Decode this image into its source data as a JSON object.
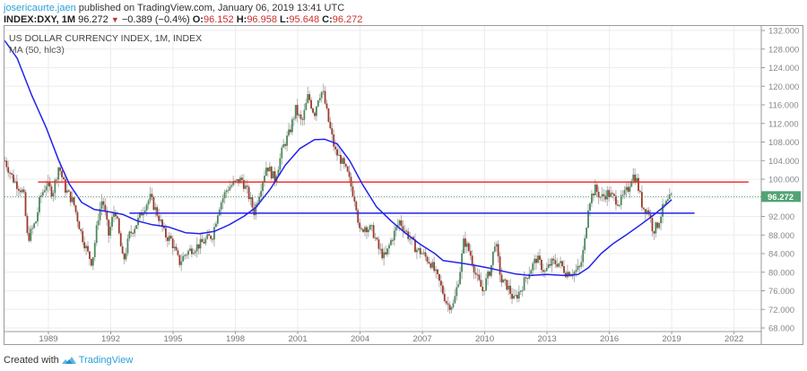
{
  "header": {
    "user": "josericaurte.jaen",
    "published": "published on TradingView.com, January 06, 2019 13:41 UTC",
    "symbol": "INDEX:DXY, 1M",
    "last": "96.272",
    "change": "−0.389 (−0.4%)",
    "o_label": "O:",
    "o": "96.152",
    "h_label": "H:",
    "h": "96.958",
    "l_label": "L:",
    "l": "95.648",
    "c_label": "C:",
    "c": "96.272"
  },
  "legend": {
    "title": "US DOLLAR CURRENCY INDEX, 1M, INDEX",
    "indicator": "MA (50, hlc3)"
  },
  "footer": {
    "created_with": "Created with",
    "brand": "TradingView"
  },
  "colors": {
    "up": "#4a8a5c",
    "down": "#9c3b2c",
    "wick": "#b0b0b0",
    "ma": "#2222ee",
    "resistance": "#f03030",
    "support": "#2222ee",
    "price_line": "#53a374",
    "grid": "#ececec"
  },
  "chart_data": {
    "type": "candlestick",
    "title": "US DOLLAR CURRENCY INDEX, 1M, INDEX",
    "timeframe": "1M",
    "xlabel": "",
    "ylabel": "",
    "x_ticks": [
      "1989",
      "1992",
      "1995",
      "1998",
      "2001",
      "2004",
      "2007",
      "2010",
      "2013",
      "2016",
      "2019",
      "2022"
    ],
    "y_ticks": [
      "132.000",
      "128.000",
      "124.000",
      "120.000",
      "116.000",
      "112.000",
      "108.000",
      "104.000",
      "100.000",
      "96.000",
      "92.000",
      "88.000",
      "84.000",
      "80.000",
      "76.000",
      "72.000",
      "68.000"
    ],
    "ylim": [
      68,
      132
    ],
    "xlim": [
      1986.6,
      2023.4
    ],
    "last_price": 96.272,
    "last_price_label": "96.272",
    "price_waypoints": [
      [
        1986.9,
        104
      ],
      [
        1987.3,
        100
      ],
      [
        1987.8,
        97
      ],
      [
        1988.0,
        87
      ],
      [
        1988.4,
        91
      ],
      [
        1988.6,
        96
      ],
      [
        1988.9,
        99
      ],
      [
        1989.2,
        97
      ],
      [
        1989.5,
        103
      ],
      [
        1989.8,
        98
      ],
      [
        1990.2,
        95
      ],
      [
        1990.6,
        88
      ],
      [
        1990.9,
        84
      ],
      [
        1991.1,
        82
      ],
      [
        1991.4,
        92
      ],
      [
        1991.6,
        96
      ],
      [
        1991.9,
        88
      ],
      [
        1992.2,
        94
      ],
      [
        1992.6,
        82
      ],
      [
        1992.9,
        88
      ],
      [
        1993.3,
        91
      ],
      [
        1993.6,
        94
      ],
      [
        1993.9,
        96
      ],
      [
        1994.3,
        92
      ],
      [
        1994.6,
        88
      ],
      [
        1994.9,
        87
      ],
      [
        1995.3,
        82
      ],
      [
        1995.6,
        84
      ],
      [
        1995.9,
        85
      ],
      [
        1996.3,
        86
      ],
      [
        1996.6,
        87
      ],
      [
        1996.9,
        88
      ],
      [
        1997.2,
        94
      ],
      [
        1997.6,
        98
      ],
      [
        1997.9,
        99
      ],
      [
        1998.3,
        100
      ],
      [
        1998.6,
        97
      ],
      [
        1998.9,
        93
      ],
      [
        1999.2,
        98
      ],
      [
        1999.5,
        103
      ],
      [
        1999.9,
        100
      ],
      [
        2000.3,
        107
      ],
      [
        2000.6,
        110
      ],
      [
        2000.9,
        115
      ],
      [
        2001.2,
        112
      ],
      [
        2001.5,
        118
      ],
      [
        2001.8,
        114
      ],
      [
        2002.0,
        118
      ],
      [
        2002.2,
        119
      ],
      [
        2002.5,
        112
      ],
      [
        2002.8,
        106
      ],
      [
        2003.1,
        104
      ],
      [
        2003.4,
        101
      ],
      [
        2003.8,
        95
      ],
      [
        2004.0,
        88
      ],
      [
        2004.2,
        90
      ],
      [
        2004.6,
        89
      ],
      [
        2004.9,
        85
      ],
      [
        2005.2,
        83
      ],
      [
        2005.5,
        87
      ],
      [
        2005.9,
        91
      ],
      [
        2006.3,
        88
      ],
      [
        2006.7,
        85
      ],
      [
        2007.0,
        84
      ],
      [
        2007.4,
        82
      ],
      [
        2007.8,
        78
      ],
      [
        2008.2,
        73
      ],
      [
        2008.5,
        73
      ],
      [
        2008.8,
        80
      ],
      [
        2009.0,
        87
      ],
      [
        2009.3,
        84
      ],
      [
        2009.6,
        79
      ],
      [
        2009.9,
        76
      ],
      [
        2010.3,
        81
      ],
      [
        2010.5,
        87
      ],
      [
        2010.8,
        78
      ],
      [
        2011.1,
        77
      ],
      [
        2011.4,
        74
      ],
      [
        2011.7,
        76
      ],
      [
        2012.0,
        79
      ],
      [
        2012.5,
        83
      ],
      [
        2012.9,
        80
      ],
      [
        2013.2,
        82
      ],
      [
        2013.6,
        82
      ],
      [
        2013.9,
        80
      ],
      [
        2014.3,
        80
      ],
      [
        2014.6,
        81
      ],
      [
        2014.8,
        86
      ],
      [
        2015.0,
        95
      ],
      [
        2015.3,
        98
      ],
      [
        2015.6,
        96
      ],
      [
        2015.9,
        97
      ],
      [
        2016.2,
        96
      ],
      [
        2016.5,
        95
      ],
      [
        2016.9,
        98
      ],
      [
        2017.1,
        101
      ],
      [
        2017.3,
        100
      ],
      [
        2017.6,
        94
      ],
      [
        2017.9,
        93
      ],
      [
        2018.1,
        89
      ],
      [
        2018.3,
        90
      ],
      [
        2018.6,
        94
      ],
      [
        2018.8,
        95
      ],
      [
        2019.0,
        96.3
      ]
    ],
    "series": [
      {
        "name": "MA (50, hlc3)",
        "type": "line",
        "points": [
          [
            1986.9,
            129.8
          ],
          [
            1987.5,
            126
          ],
          [
            1988.2,
            118
          ],
          [
            1988.9,
            111
          ],
          [
            1989.5,
            104
          ],
          [
            1990.0,
            99
          ],
          [
            1990.6,
            95
          ],
          [
            1991.2,
            93.5
          ],
          [
            1991.9,
            93
          ],
          [
            1992.6,
            92.4
          ],
          [
            1993.3,
            91
          ],
          [
            1994.0,
            90.2
          ],
          [
            1994.8,
            89.7
          ],
          [
            1995.6,
            88.5
          ],
          [
            1996.3,
            88.3
          ],
          [
            1997.0,
            88.8
          ],
          [
            1997.7,
            90.2
          ],
          [
            1998.4,
            92
          ],
          [
            1999.0,
            94
          ],
          [
            1999.7,
            98
          ],
          [
            2000.4,
            103
          ],
          [
            2001.1,
            106.6
          ],
          [
            2001.8,
            108.5
          ],
          [
            2002.3,
            108.6
          ],
          [
            2002.9,
            107.6
          ],
          [
            2003.5,
            104
          ],
          [
            2004.1,
            99
          ],
          [
            2004.8,
            94
          ],
          [
            2005.5,
            91
          ],
          [
            2006.1,
            88.7
          ],
          [
            2006.9,
            86
          ],
          [
            2007.6,
            84
          ],
          [
            2008.0,
            82.5
          ],
          [
            2008.8,
            82
          ],
          [
            2009.5,
            81.5
          ],
          [
            2010.1,
            81.0
          ],
          [
            2010.8,
            80.3
          ],
          [
            2011.5,
            79.6
          ],
          [
            2012.2,
            79.3
          ],
          [
            2013.0,
            79.5
          ],
          [
            2013.8,
            79.3
          ],
          [
            2014.5,
            79.5
          ],
          [
            2015.0,
            81
          ],
          [
            2015.6,
            84
          ],
          [
            2016.2,
            86.2
          ],
          [
            2016.9,
            88.3
          ],
          [
            2017.5,
            90.2
          ],
          [
            2018.1,
            92.2
          ],
          [
            2018.6,
            94
          ],
          [
            2019.0,
            95.6
          ]
        ]
      },
      {
        "name": "Resistance line",
        "type": "hline",
        "value": 99.4,
        "x_start": 1988.5,
        "x_end": 2022.7
      },
      {
        "name": "Support line",
        "type": "hline",
        "value": 92.7,
        "x_start": 1992.9,
        "x_end": 2020.1
      }
    ]
  }
}
